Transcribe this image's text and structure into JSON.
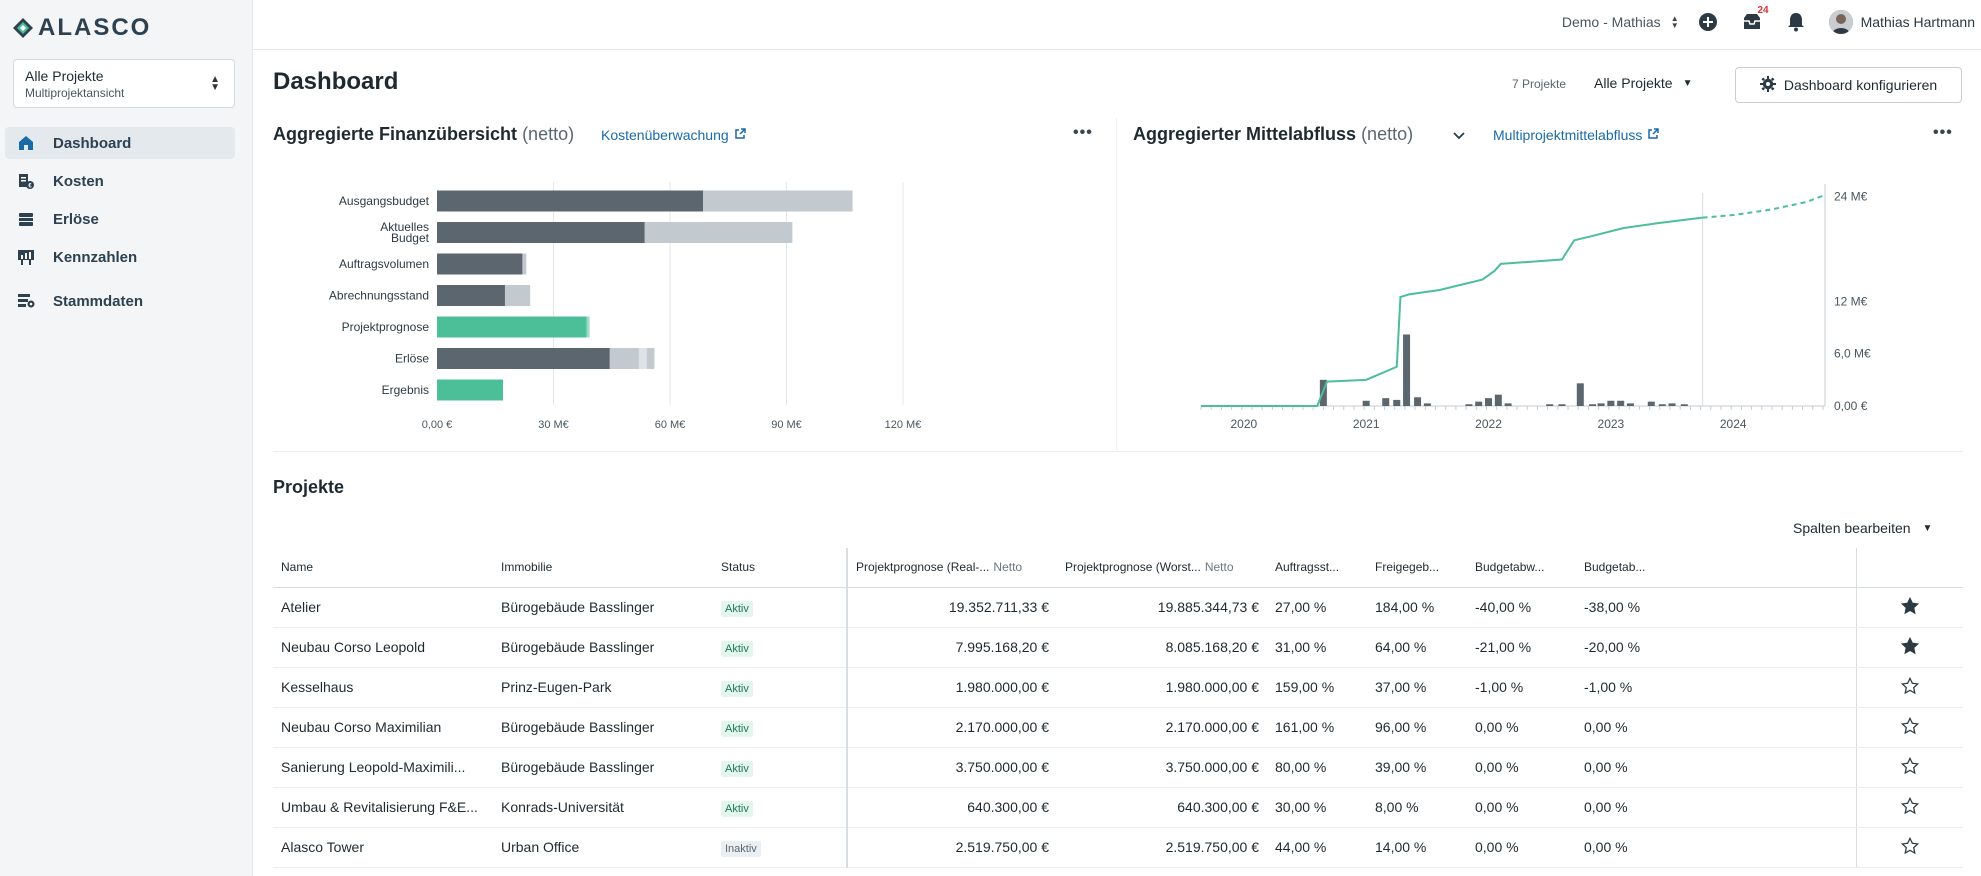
{
  "app": {
    "logo": "ALASCO"
  },
  "project_select": {
    "title": "Alle Projekte",
    "subtitle": "Multiprojektansicht"
  },
  "nav": [
    {
      "label": "Dashboard",
      "icon": "home-icon",
      "active": true
    },
    {
      "label": "Kosten",
      "icon": "cost-icon"
    },
    {
      "label": "Erlöse",
      "icon": "revenue-icon"
    },
    {
      "label": "Kennzahlen",
      "icon": "kpi-icon"
    },
    {
      "label": "Stammdaten",
      "icon": "master-data-icon"
    }
  ],
  "topbar": {
    "org": "Demo - Mathias",
    "notif_badge": "24",
    "user_name": "Mathias Hartmann"
  },
  "header": {
    "title": "Dashboard",
    "project_count": "7 Projekte",
    "filter": "Alle Projekte",
    "configure_label": "Dashboard konfigurieren"
  },
  "finance_card": {
    "title": "Aggregierte Finanzübersicht",
    "title_suffix": "(netto)",
    "link": "Kostenüberwachung"
  },
  "cashflow_card": {
    "title": "Aggregierter Mittelabfluss",
    "title_suffix": "(netto)",
    "link": "Multiprojektmittelabfluss"
  },
  "chart_data": [
    {
      "type": "bar",
      "orientation": "horizontal",
      "title": "Aggregierte Finanzübersicht (netto)",
      "categories": [
        "Ausgangsbudget",
        "Aktuelles Budget",
        "Auftragsvolumen",
        "Abrechnungsstand",
        "Projektprognose",
        "Erlöse",
        "Ergebnis"
      ],
      "category_label_lines": [
        [
          "Ausgangsbudget"
        ],
        [
          "Aktuelles",
          "Budget"
        ],
        [
          "Auftragsvolumen"
        ],
        [
          "Abrechnungsstand"
        ],
        [
          "Projektprognose"
        ],
        [
          "Erlöse"
        ],
        [
          "Ergebnis"
        ]
      ],
      "series": [
        {
          "values": [
            68.5,
            53.5,
            22.0,
            17.5,
            38.5,
            44.5,
            17.0
          ],
          "colors": [
            "#5b666e",
            "#5b666e",
            "#5b666e",
            "#5b666e",
            "#4cbf98",
            "#5b666e",
            "#4cbf98"
          ]
        },
        {
          "values": [
            38.5,
            38.0,
            1.0,
            6.5,
            0.8,
            7.5,
            0
          ],
          "colors": [
            "#c2c9cf",
            "#c2c9cf",
            "#c2c9cf",
            "#c2c9cf",
            "#9bdcc4",
            "#c2c9cf",
            "#c2c9cf"
          ]
        },
        {
          "values": [
            0,
            0,
            0,
            0,
            0,
            2.0,
            0
          ],
          "colors": [
            "#dde2e6",
            "#dde2e6",
            "#dde2e6",
            "#dde2e6",
            "#dde2e6",
            "#dde2e6",
            "#dde2e6"
          ]
        },
        {
          "values": [
            0,
            0,
            0,
            0,
            0,
            2.0,
            0
          ],
          "colors": [
            "#c2c9cf",
            "#c2c9cf",
            "#c2c9cf",
            "#c2c9cf",
            "#c2c9cf",
            "#c2c9cf",
            "#c2c9cf"
          ]
        }
      ],
      "xlim": [
        0,
        120
      ],
      "xticks": [
        0,
        30,
        60,
        90,
        120
      ],
      "xtick_labels": [
        "0,00 €",
        "30 M€",
        "60 M€",
        "90 M€",
        "120 M€"
      ],
      "grid": true
    },
    {
      "type": "line",
      "title": "Aggregierter Mittelabfluss (netto)",
      "x_start": 2019.65,
      "x_end": 2024.75,
      "today": 2023.75,
      "ylim": [
        0,
        25
      ],
      "yticks": [
        0,
        6,
        12,
        24
      ],
      "ytick_labels": [
        "0,00 €",
        "6,0 M€",
        "12 M€",
        "24 M€"
      ],
      "xticks": [
        2020,
        2021,
        2022,
        2023,
        2024
      ],
      "xtick_labels": [
        "2020",
        "2021",
        "2022",
        "2023",
        "2024"
      ],
      "cumulative_actual": [
        [
          2019.65,
          0
        ],
        [
          2020.6,
          0
        ],
        [
          2020.68,
          2.8
        ],
        [
          2021.0,
          3.0
        ],
        [
          2021.25,
          4.5
        ],
        [
          2021.28,
          12.5
        ],
        [
          2021.35,
          12.8
        ],
        [
          2021.6,
          13.3
        ],
        [
          2021.95,
          14.5
        ],
        [
          2022.05,
          15.5
        ],
        [
          2022.1,
          16.3
        ],
        [
          2022.6,
          16.8
        ],
        [
          2022.7,
          19.0
        ],
        [
          2022.85,
          19.5
        ],
        [
          2023.1,
          20.4
        ],
        [
          2023.4,
          21.0
        ],
        [
          2023.75,
          21.6
        ]
      ],
      "cumulative_forecast": [
        [
          2023.75,
          21.6
        ],
        [
          2024.0,
          21.9
        ],
        [
          2024.3,
          22.5
        ],
        [
          2024.6,
          23.4
        ],
        [
          2024.75,
          24.2
        ]
      ],
      "monthly_bars": [
        [
          2020.65,
          3.0
        ],
        [
          2021.0,
          0.6
        ],
        [
          2021.16,
          0.9
        ],
        [
          2021.25,
          0.7
        ],
        [
          2021.33,
          8.2
        ],
        [
          2021.42,
          1.0
        ],
        [
          2021.5,
          0.3
        ],
        [
          2021.84,
          0.2
        ],
        [
          2021.92,
          0.5
        ],
        [
          2022.0,
          0.9
        ],
        [
          2022.08,
          1.3
        ],
        [
          2022.16,
          0.3
        ],
        [
          2022.5,
          0.2
        ],
        [
          2022.6,
          0.2
        ],
        [
          2022.75,
          2.6
        ],
        [
          2022.85,
          0.2
        ],
        [
          2022.92,
          0.3
        ],
        [
          2023.0,
          0.6
        ],
        [
          2023.08,
          0.6
        ],
        [
          2023.16,
          0.3
        ],
        [
          2023.33,
          0.5
        ],
        [
          2023.42,
          0.2
        ],
        [
          2023.5,
          0.3
        ],
        [
          2023.6,
          0.2
        ]
      ],
      "colors": {
        "line": "#4cbf98",
        "bars": "#5b666e"
      }
    }
  ],
  "projects": {
    "title": "Projekte",
    "edit_columns": "Spalten bearbeiten",
    "columns": [
      {
        "label": "Name"
      },
      {
        "label": "Immobilie"
      },
      {
        "label": "Status"
      },
      {
        "label": "Projektprognose (Real-...",
        "suffix": "Netto"
      },
      {
        "label": "Projektprognose (Worst...",
        "suffix": "Netto"
      },
      {
        "label": "Auftragsst..."
      },
      {
        "label": "Freigegeb..."
      },
      {
        "label": "Budgetabw..."
      },
      {
        "label": "Budgetab..."
      }
    ],
    "rows": [
      {
        "name": "Atelier",
        "property": "Bürogebäude Basslinger",
        "status": "Aktiv",
        "real": "19.352.711,33 €",
        "worst": "19.885.344,73 €",
        "order": "27,00 %",
        "released": "184,00 %",
        "dev1": "-40,00 %",
        "dev2": "-38,00 %",
        "starred": true
      },
      {
        "name": "Neubau Corso Leopold",
        "property": "Bürogebäude Basslinger",
        "status": "Aktiv",
        "real": "7.995.168,20 €",
        "worst": "8.085.168,20 €",
        "order": "31,00 %",
        "released": "64,00 %",
        "dev1": "-21,00 %",
        "dev2": "-20,00 %",
        "starred": true
      },
      {
        "name": "Kesselhaus",
        "property": "Prinz-Eugen-Park",
        "status": "Aktiv",
        "real": "1.980.000,00 €",
        "worst": "1.980.000,00 €",
        "order": "159,00 %",
        "released": "37,00 %",
        "dev1": "-1,00 %",
        "dev2": "-1,00 %",
        "starred": false
      },
      {
        "name": "Neubau Corso Maximilian",
        "property": "Bürogebäude Basslinger",
        "status": "Aktiv",
        "real": "2.170.000,00 €",
        "worst": "2.170.000,00 €",
        "order": "161,00 %",
        "released": "96,00 %",
        "dev1": "0,00 %",
        "dev2": "0,00 %",
        "starred": false
      },
      {
        "name": "Sanierung Leopold-Maximili...",
        "property": "Bürogebäude Basslinger",
        "status": "Aktiv",
        "real": "3.750.000,00 €",
        "worst": "3.750.000,00 €",
        "order": "80,00 %",
        "released": "39,00 %",
        "dev1": "0,00 %",
        "dev2": "0,00 %",
        "starred": false
      },
      {
        "name": "Umbau & Revitalisierung F&E...",
        "property": "Konrads-Universität",
        "status": "Aktiv",
        "real": "640.300,00 €",
        "worst": "640.300,00 €",
        "order": "30,00 %",
        "released": "8,00 %",
        "dev1": "0,00 %",
        "dev2": "0,00 %",
        "starred": false
      },
      {
        "name": "Alasco Tower",
        "property": "Urban Office",
        "status": "Inaktiv",
        "real": "2.519.750,00 €",
        "worst": "2.519.750,00 €",
        "order": "44,00 %",
        "released": "14,00 %",
        "dev1": "0,00 %",
        "dev2": "0,00 %",
        "starred": false
      }
    ]
  }
}
